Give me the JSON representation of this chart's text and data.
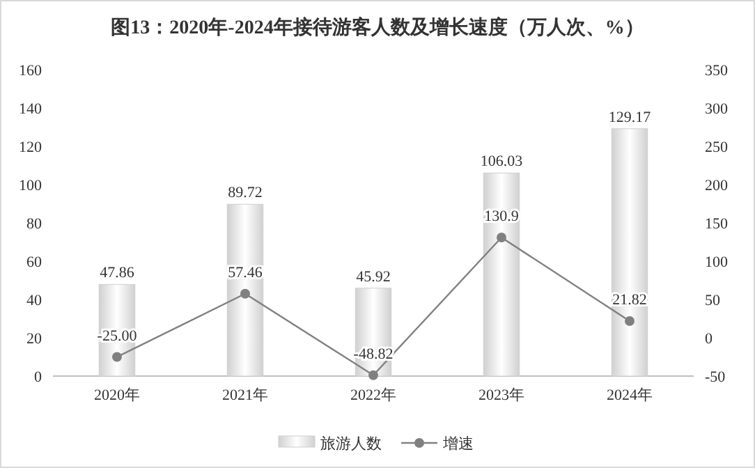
{
  "chart_data": {
    "type": "bar",
    "title": "图13：2020年-2024年接待游客人数及增长速度（万人次、%）",
    "categories": [
      "2020年",
      "2021年",
      "2022年",
      "2023年",
      "2024年"
    ],
    "series": [
      {
        "name": "旅游人数",
        "color": "#d0d0d0",
        "values": [
          47.86,
          89.72,
          45.92,
          106.03,
          129.17
        ]
      },
      {
        "name": "增速",
        "type": "line",
        "axis": "y2",
        "color": "#808080",
        "marker": "circle",
        "values": [
          -25.0,
          57.46,
          -48.82,
          130.9,
          21.82
        ],
        "value_labels": [
          "-25.00",
          "57.46",
          "-48.82",
          "130.9",
          "21.82"
        ]
      }
    ],
    "ylim": [
      0,
      160
    ],
    "yticks": [
      0,
      20,
      40,
      60,
      80,
      100,
      120,
      140,
      160
    ],
    "y2lim": [
      -50,
      350
    ],
    "y2ticks": [
      -50,
      0,
      50,
      100,
      150,
      200,
      250,
      300,
      350
    ],
    "data_labels": true,
    "legend": "bottom"
  }
}
